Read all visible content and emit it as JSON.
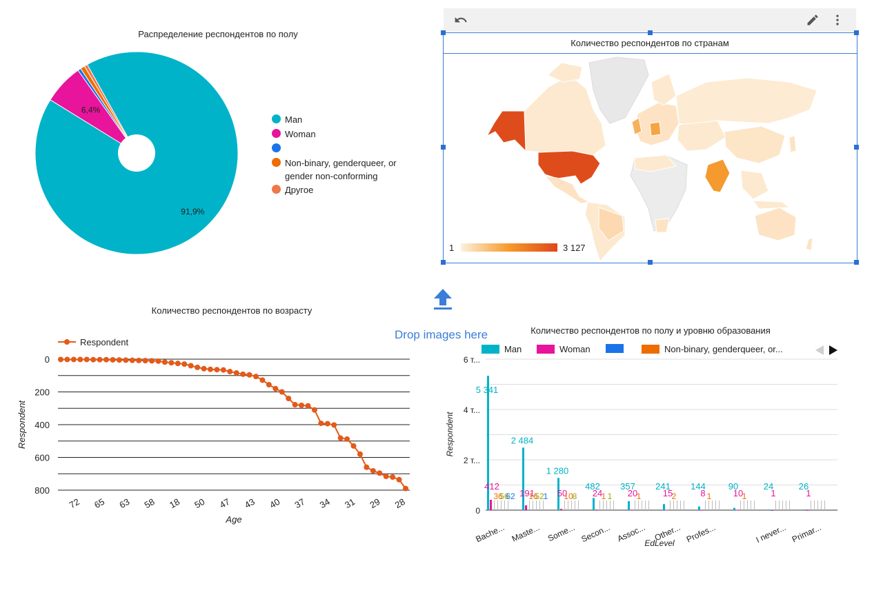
{
  "toolbar": {
    "undo_icon": "undo-icon",
    "edit_icon": "pencil-icon",
    "more_icon": "more-vert-icon"
  },
  "drop_zone": {
    "text": "Drop images here",
    "icon": "upload-arrow-icon"
  },
  "colors": {
    "man": "#00b3c8",
    "woman": "#e8149b",
    "blank": "#1a73e8",
    "nonbinary": "#ef6c00",
    "other": "#f0774a",
    "line": "#e35a1a",
    "selection": "#3a7bd5"
  },
  "chart_data": [
    {
      "type": "pie",
      "title": "Распределение респондентов по полу",
      "donut": true,
      "slices": [
        {
          "label": "Man",
          "value": 91.9,
          "display": "91,9%",
          "color": "#00b3c8"
        },
        {
          "label": "Woman",
          "value": 6.4,
          "display": "6,4%",
          "color": "#e8149b"
        },
        {
          "label": "",
          "value": 0.5,
          "display": "",
          "color": "#1a73e8"
        },
        {
          "label": "Non-binary, genderqueer, or gender non-conforming",
          "value": 0.7,
          "display": "",
          "color": "#ef6c00"
        },
        {
          "label": "Другое",
          "value": 0.5,
          "display": "",
          "color": "#f0774a"
        }
      ],
      "legend": [
        "Man",
        "Woman",
        "",
        "Non-binary, genderqueer, or gender non-conforming",
        "Другое"
      ],
      "legend_placement": "right"
    },
    {
      "type": "map",
      "title": "Количество респондентов по странам",
      "scale_min_label": "1",
      "scale_max_label": "3 127",
      "scale_min": 1,
      "scale_max": 3127,
      "highlighted": [
        "United States",
        "India",
        "Germany"
      ]
    },
    {
      "type": "line",
      "title": "Количество респондентов по возрасту",
      "xlabel": "Age",
      "ylabel": "Respondent",
      "series_name": "Respondent",
      "y_reversed": true,
      "ylim": [
        0,
        800
      ],
      "yticks": [
        "0",
        "200",
        "400",
        "600",
        "800"
      ],
      "xticks": [
        "72",
        "65",
        "63",
        "58",
        "18",
        "50",
        "47",
        "43",
        "40",
        "37",
        "34",
        "31",
        "29",
        "28"
      ],
      "values": [
        2,
        2,
        2,
        2,
        2,
        3,
        3,
        3,
        4,
        5,
        6,
        7,
        8,
        9,
        10,
        12,
        18,
        22,
        26,
        30,
        40,
        50,
        58,
        62,
        64,
        66,
        76,
        84,
        92,
        96,
        106,
        128,
        156,
        180,
        200,
        240,
        278,
        282,
        285,
        310,
        392,
        394,
        402,
        482,
        488,
        530,
        580,
        660,
        682,
        696,
        716,
        720,
        736,
        790
      ],
      "legend_placement": "top-left",
      "grid": true
    },
    {
      "type": "bar",
      "title": "Количество респондентов по полу и уровню образования",
      "xlabel": "EdLevel",
      "ylabel": "Respondent",
      "yticks": [
        "0",
        "2 т...",
        "4 т...",
        "6 т..."
      ],
      "ylim": [
        0,
        6000
      ],
      "legend": [
        "Man",
        "Woman",
        "",
        "Non-binary, genderqueer, or..."
      ],
      "categories": [
        "Bache...",
        "Maste...",
        "Some...",
        "Secon...",
        "Assoc...",
        "Other...",
        "Profes...",
        "",
        "I never...",
        "Primar..."
      ],
      "series": [
        {
          "name": "Man",
          "color": "#00b3c8",
          "values": [
            5341,
            2484,
            1280,
            482,
            357,
            241,
            144,
            90,
            24,
            26
          ],
          "labels": [
            "5 341",
            "2 484",
            "1 280",
            "482",
            "357",
            "241",
            "144",
            "90",
            "24",
            "26"
          ]
        },
        {
          "name": "Woman",
          "color": "#e8149b",
          "values": [
            412,
            191,
            50,
            24,
            20,
            15,
            8,
            10,
            1,
            1
          ],
          "labels": [
            "412",
            "191",
            "50",
            "24",
            "20",
            "15",
            "8",
            "10",
            "1",
            "1"
          ]
        }
      ],
      "small_labels": [
        [
          "36",
          "56",
          "62"
        ],
        [
          "16",
          "52",
          "1"
        ],
        [
          "10",
          "8"
        ],
        [
          "1",
          "1"
        ],
        [
          "1"
        ],
        [
          "2"
        ],
        [
          "1"
        ],
        [
          "1"
        ],
        [],
        []
      ],
      "legend_placement": "top",
      "grid": true
    }
  ]
}
